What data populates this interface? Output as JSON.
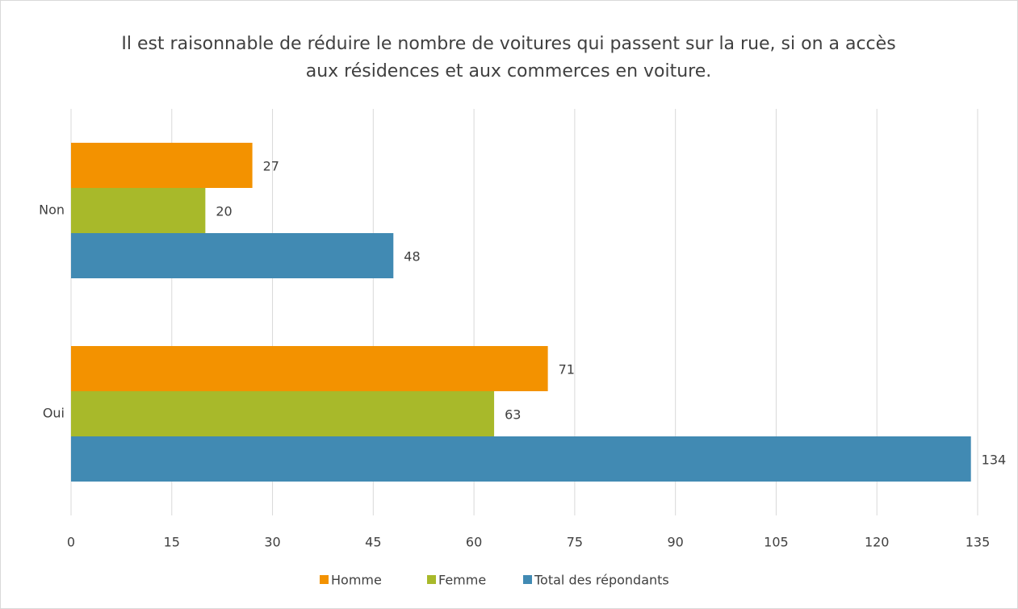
{
  "chart_data": {
    "type": "bar",
    "orientation": "horizontal",
    "title": "Il est raisonnable de réduire le nombre de voitures qui passent sur la rue, si on a accès aux résidences et aux commerces en voiture.",
    "categories": [
      "Non",
      "Oui"
    ],
    "series": [
      {
        "name": "Homme",
        "color": "#f39200",
        "values": [
          27,
          71
        ]
      },
      {
        "name": "Femme",
        "color": "#a8b92a",
        "values": [
          20,
          63
        ]
      },
      {
        "name": "Total des répondants",
        "color": "#418ab3",
        "values": [
          48,
          134
        ]
      }
    ],
    "xlim": [
      0,
      135
    ],
    "xticks": [
      0,
      15,
      30,
      45,
      60,
      75,
      90,
      105,
      120,
      135
    ],
    "grid": true,
    "legend": "bottom"
  }
}
